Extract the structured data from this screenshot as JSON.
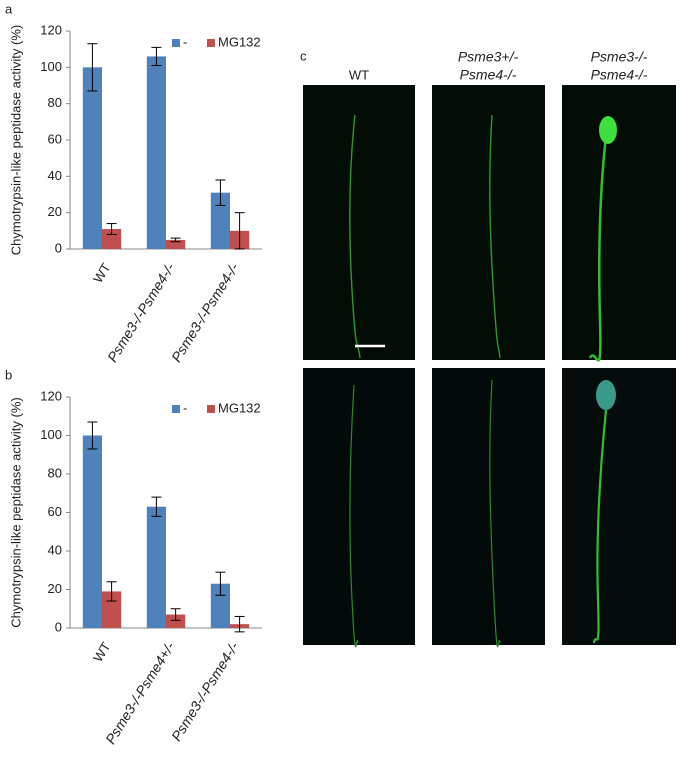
{
  "chart_data": [
    {
      "type": "bar",
      "panel": "a",
      "ylabel": "Chymotrypsin-like peptidase activity (%)",
      "categories": [
        "WT",
        "Psme3-/-Psme4-/-",
        "Psme3-/-Psme4-/-"
      ],
      "series": [
        {
          "name": "-",
          "color": "#4f81bd",
          "values": [
            100,
            106,
            31
          ],
          "errors": [
            13,
            5,
            7
          ]
        },
        {
          "name": "MG132",
          "color": "#c0504d",
          "values": [
            11,
            5,
            10
          ],
          "errors": [
            3,
            1,
            10
          ]
        }
      ],
      "ylim": [
        0,
        120
      ],
      "yticks": [
        0,
        20,
        40,
        60,
        80,
        100,
        120
      ],
      "legend": "top-right"
    },
    {
      "type": "bar",
      "panel": "b",
      "ylabel": "Chymotrypsin-like peptidase activity (%)",
      "categories": [
        "WT",
        "Psme3-/-Psme4+/-",
        "Psme3-/-Psme4-/-"
      ],
      "series": [
        {
          "name": "-",
          "color": "#4f81bd",
          "values": [
            100,
            63,
            23
          ],
          "errors": [
            7,
            5,
            6
          ]
        },
        {
          "name": "MG132",
          "color": "#c0504d",
          "values": [
            19,
            7,
            2
          ],
          "errors": [
            5,
            3,
            4
          ]
        }
      ],
      "ylim": [
        0,
        120
      ],
      "yticks": [
        0,
        20,
        40,
        60,
        80,
        100,
        120
      ],
      "legend": "top-right"
    }
  ],
  "panel_c": {
    "label": "c",
    "columns": [
      [
        "WT"
      ],
      [
        "Psme3+/-",
        "Psme4-/-"
      ],
      [
        "Psme3-/-",
        "Psme4-/-"
      ]
    ]
  }
}
